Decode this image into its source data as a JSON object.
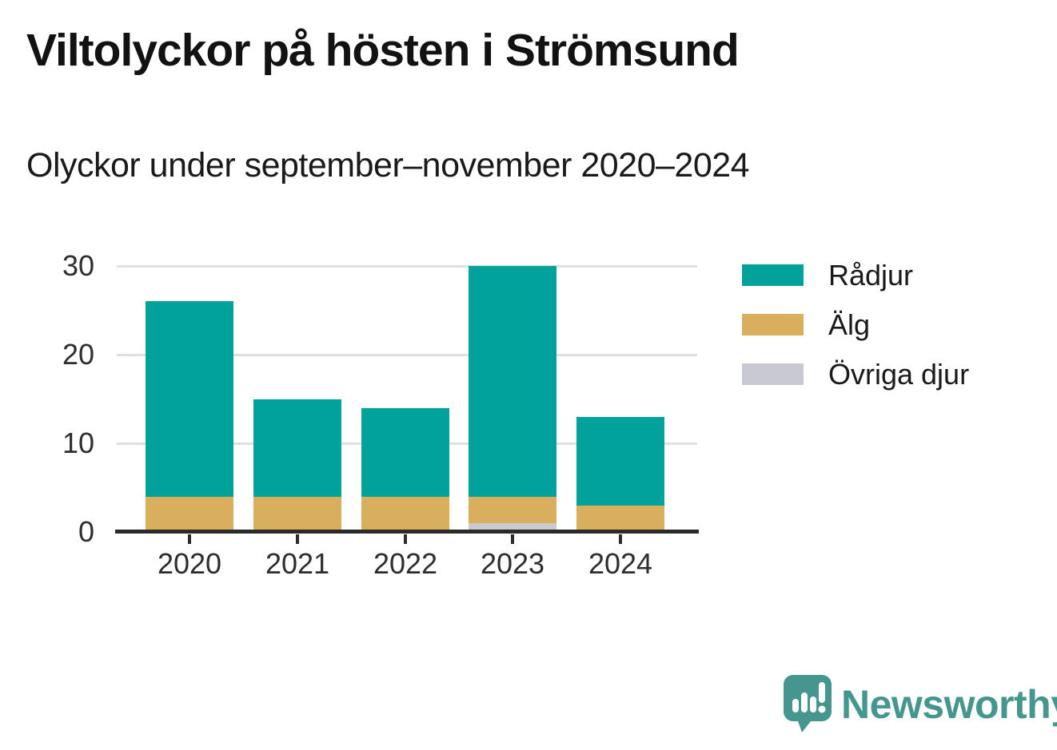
{
  "title": "Viltolyckor på hösten i Strömsund",
  "subtitle": "Olyckor under september–november 2020–2024",
  "branding": {
    "logo_text": "Newsworthy",
    "logo_icon": "newsworthy-speech-bubble-chart-icon",
    "logo_color": "#45968e"
  },
  "colors": {
    "radjur": "#00a29b",
    "alg": "#d9ae5d",
    "ovriga": "#c9c9d2",
    "gridline": "#e0e0e0",
    "axis": "#2b2b2b",
    "text": "#2e2e2e"
  },
  "chart_data": {
    "type": "bar",
    "stacked": true,
    "title": "Viltolyckor på hösten i Strömsund",
    "subtitle": "Olyckor under september–november 2020–2024",
    "categories": [
      "2020",
      "2021",
      "2022",
      "2023",
      "2024"
    ],
    "series": [
      {
        "name": "Rådjur",
        "color": "#00a29b",
        "values": [
          22,
          11,
          10,
          26,
          10
        ]
      },
      {
        "name": "Älg",
        "color": "#d9ae5d",
        "values": [
          4,
          4,
          4,
          3,
          3
        ]
      },
      {
        "name": "Övriga djur",
        "color": "#c9c9d2",
        "values": [
          0,
          0,
          0,
          1,
          0
        ]
      }
    ],
    "stack_order_bottom_to_top": [
      "Övriga djur",
      "Älg",
      "Rådjur"
    ],
    "totals": [
      26,
      15,
      14,
      30,
      13
    ],
    "xlabel": "",
    "ylabel": "",
    "ylim": [
      0,
      30
    ],
    "yticks": [
      0,
      10,
      20,
      30
    ],
    "grid": "horizontal",
    "legend_position": "right"
  }
}
